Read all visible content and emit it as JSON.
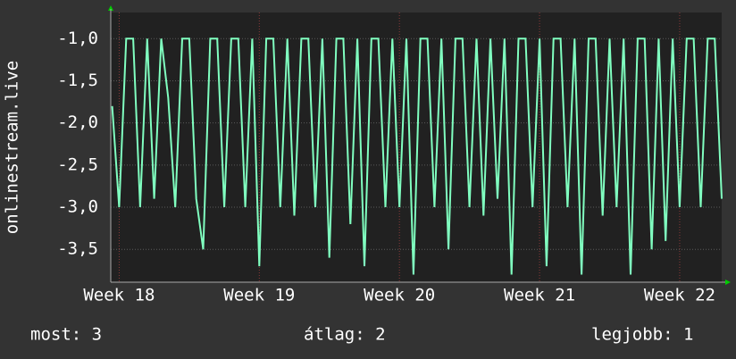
{
  "chart_data": {
    "type": "line",
    "y_label": "onlinestream.live",
    "x": [
      17.95,
      18,
      18.05,
      18.1,
      18.15,
      18.2,
      18.25,
      18.3,
      18.35,
      18.4,
      18.45,
      18.5,
      18.55,
      18.6,
      18.65,
      18.7,
      18.75,
      18.8,
      18.85,
      18.9,
      18.95,
      19,
      19.05,
      19.1,
      19.15,
      19.2,
      19.25,
      19.3,
      19.35,
      19.4,
      19.45,
      19.5,
      19.55,
      19.6,
      19.65,
      19.7,
      19.75,
      19.8,
      19.85,
      19.9,
      19.95,
      20,
      20.05,
      20.1,
      20.15,
      20.2,
      20.25,
      20.3,
      20.35,
      20.4,
      20.45,
      20.5,
      20.55,
      20.6,
      20.65,
      20.7,
      20.75,
      20.8,
      20.85,
      20.9,
      20.95,
      21,
      21.05,
      21.1,
      21.15,
      21.2,
      21.25,
      21.3,
      21.35,
      21.4,
      21.45,
      21.5,
      21.55,
      21.6,
      21.65,
      21.7,
      21.75,
      21.8,
      21.85,
      21.9,
      21.95,
      22,
      22.05,
      22.1,
      22.15,
      22.2,
      22.25,
      22.3
    ],
    "series": [
      {
        "color": "#80ffc0",
        "values": [
          -1.8,
          -3.0,
          -1.0,
          -1.0,
          -3.0,
          -1.0,
          -2.9,
          -1.0,
          -1.7,
          -3.0,
          -1.0,
          -1.0,
          -2.9,
          -3.5,
          -1.0,
          -1.0,
          -3.0,
          -1.0,
          -1.0,
          -3.0,
          -1.0,
          -3.7,
          -1.0,
          -1.0,
          -3.0,
          -1.0,
          -3.1,
          -1.0,
          -1.0,
          -3.0,
          -1.0,
          -3.6,
          -1.0,
          -1.0,
          -3.2,
          -1.0,
          -3.7,
          -1.0,
          -1.0,
          -3.0,
          -1.0,
          -3.0,
          -1.0,
          -3.8,
          -1.0,
          -1.0,
          -3.0,
          -1.0,
          -3.5,
          -1.0,
          -1.0,
          -3.0,
          -1.0,
          -3.1,
          -1.0,
          -2.9,
          -1.0,
          -3.8,
          -1.0,
          -1.0,
          -3.0,
          -1.0,
          -3.7,
          -1.0,
          -1.0,
          -3.0,
          -1.0,
          -3.8,
          -1.0,
          -1.0,
          -3.1,
          -1.0,
          -3.0,
          -1.0,
          -3.8,
          -1.0,
          -1.0,
          -3.5,
          -1.0,
          -3.4,
          -1.0,
          -3.0,
          -1.0,
          -1.0,
          -3.0,
          -1.0,
          -1.0,
          -2.9
        ]
      }
    ],
    "xlim": [
      17.94,
      22.3
    ],
    "xticks": [
      {
        "value": 18,
        "label": "Week 18"
      },
      {
        "value": 19,
        "label": "Week 19"
      },
      {
        "value": 20,
        "label": "Week 20"
      },
      {
        "value": 21,
        "label": "Week 21"
      },
      {
        "value": 22,
        "label": "Week 22"
      }
    ],
    "ylim": [
      -3.89,
      -0.69
    ],
    "yticks": [
      {
        "value": -1,
        "label": "-1,0"
      },
      {
        "value": -1.5,
        "label": "-1,5"
      },
      {
        "value": -2,
        "label": "-2,0"
      },
      {
        "value": -2.5,
        "label": "-2,5"
      },
      {
        "value": -3,
        "label": "-3,0"
      },
      {
        "value": -3.5,
        "label": "-3,5"
      }
    ],
    "grid": true,
    "footer": [
      "most: 3",
      "átlag: 2",
      "legjobb: 1"
    ]
  }
}
